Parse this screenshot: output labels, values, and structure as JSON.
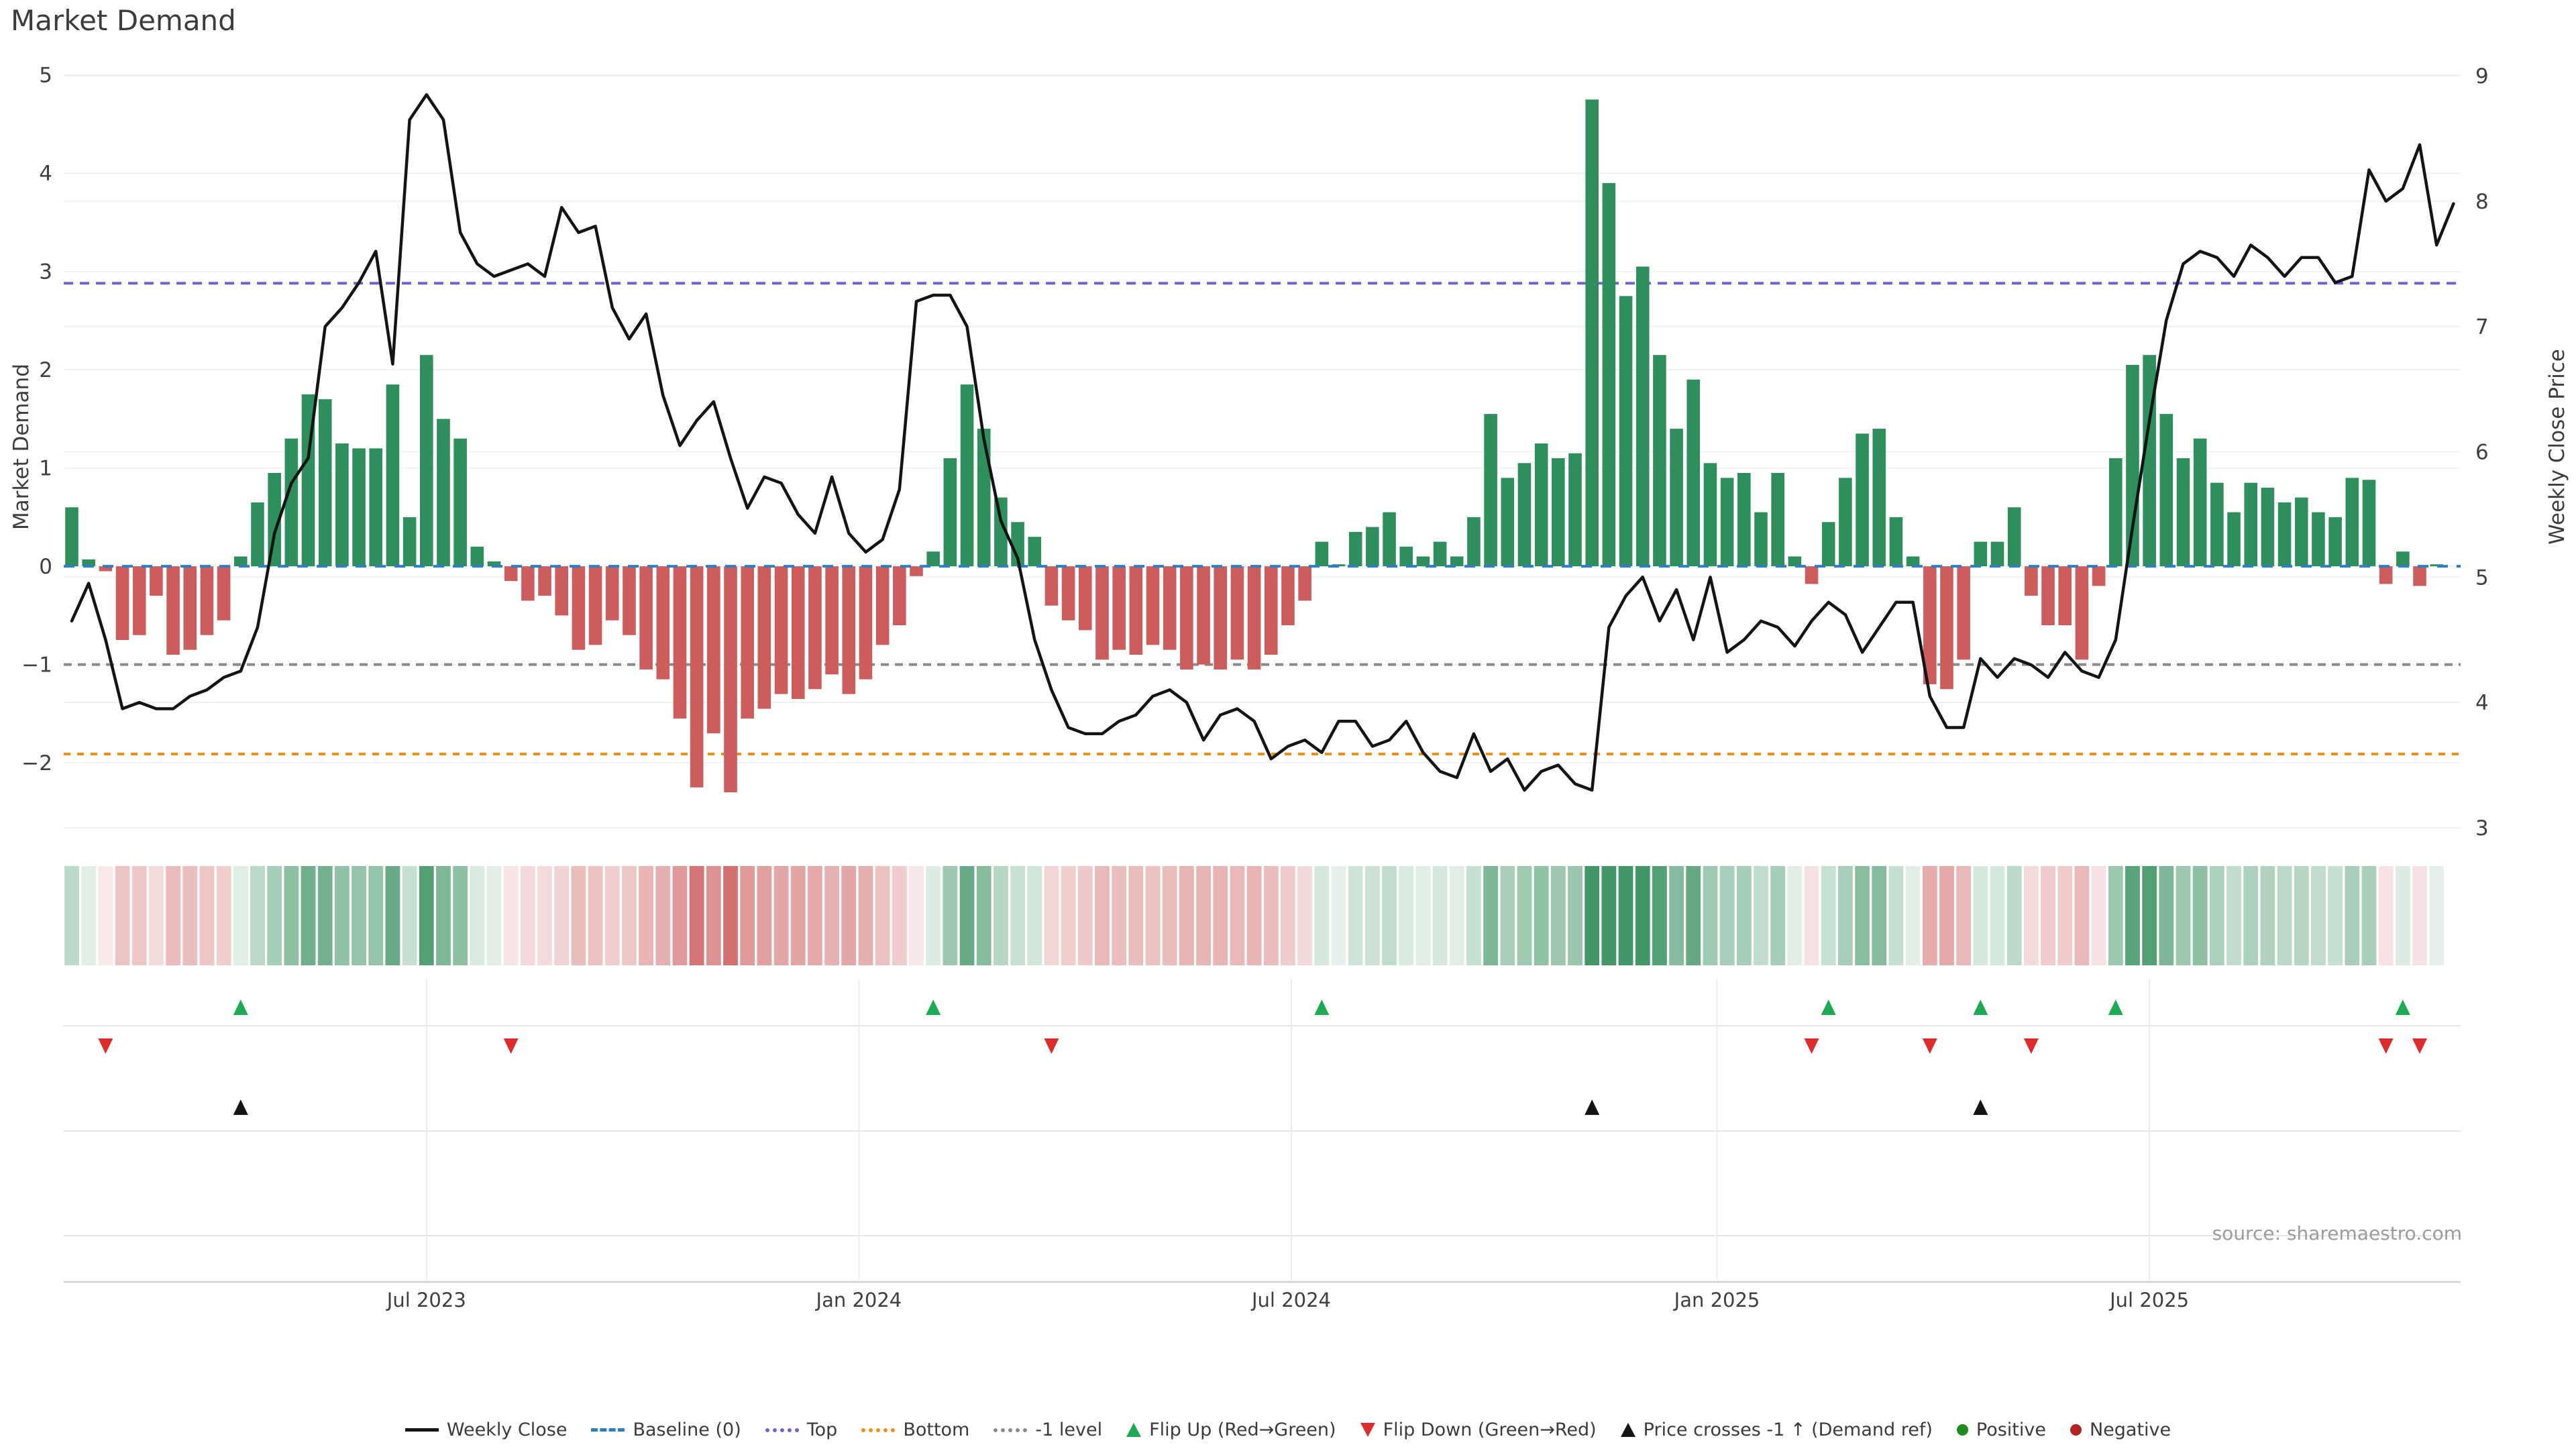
{
  "title": "Market Demand",
  "source": "source: sharemaestro.com",
  "left_axis": {
    "label": "Market Demand",
    "ticks": [
      {
        "v": 5,
        "label": "5"
      },
      {
        "v": 4,
        "label": "4"
      },
      {
        "v": 3,
        "label": "3"
      },
      {
        "v": 2,
        "label": "2"
      },
      {
        "v": 1,
        "label": "1"
      },
      {
        "v": 0,
        "label": "0"
      },
      {
        "v": -1,
        "label": "−1"
      },
      {
        "v": -2,
        "label": "−2"
      }
    ]
  },
  "right_axis": {
    "label": "Weekly Close Price",
    "ticks": [
      {
        "v": 9,
        "label": "9"
      },
      {
        "v": 8,
        "label": "8"
      },
      {
        "v": 7,
        "label": "7"
      },
      {
        "v": 6,
        "label": "6"
      },
      {
        "v": 5,
        "label": "5"
      },
      {
        "v": 4,
        "label": "4"
      },
      {
        "v": 3,
        "label": "3"
      }
    ]
  },
  "legend": {
    "items": [
      {
        "type": "line",
        "color": "#141414",
        "label": "Weekly Close"
      },
      {
        "type": "dashed",
        "color": "#2e7fc0",
        "label": "Baseline (0)"
      },
      {
        "type": "dotted",
        "color": "#6f63cf",
        "label": "Top"
      },
      {
        "type": "dotted",
        "color": "#ef8e1b",
        "label": "Bottom"
      },
      {
        "type": "dotted",
        "color": "#8a8a8a",
        "label": "-1 level"
      },
      {
        "type": "triangle-up",
        "color": "#1daa52",
        "label": "Flip Up (Red→Green)"
      },
      {
        "type": "triangle-down",
        "color": "#dd2c2c",
        "label": "Flip Down (Green→Red)"
      },
      {
        "type": "triangle-up",
        "color": "#141414",
        "label": "Price crosses -1 ↑ (Demand ref)"
      },
      {
        "type": "dot",
        "color": "#1e8c1e",
        "label": "Positive"
      },
      {
        "type": "dot",
        "color": "#b42222",
        "label": "Negative"
      }
    ]
  },
  "chart_data": {
    "type": "bar+line",
    "title": "Market Demand",
    "ylabel_left": "Market Demand",
    "ylabel_right": "Weekly Close Price",
    "weeks": 142,
    "demand_ylim": [
      -2.75,
      5.08
    ],
    "price_ylim": [
      2.93,
      9.07
    ],
    "x_ticks": [
      {
        "week": 21.0,
        "label": "Jul 2023"
      },
      {
        "week": 46.6,
        "label": "Jan 2024"
      },
      {
        "week": 72.2,
        "label": "Jul 2024"
      },
      {
        "week": 97.4,
        "label": "Jan 2025"
      },
      {
        "week": 123.0,
        "label": "Jul 2025"
      }
    ],
    "reference_lines": {
      "baseline": 0,
      "top": 2.88,
      "bottom": -1.91,
      "minus_one": -1
    },
    "colors": {
      "bar_positive": "#2e8f5c",
      "bar_negative": "#cd5c5c",
      "price_line": "#141414",
      "baseline": "#2e7fc0",
      "top_line": "#6f63cf",
      "bottom_line": "#ef8e1b",
      "minus_one_line": "#8a8a8a",
      "grid": "#eef2f7",
      "flip_up": "#1daa52",
      "flip_down": "#dd2c2c",
      "price_cross": "#141414"
    },
    "series": [
      {
        "name": "Market Demand",
        "type": "bar",
        "axis": "left",
        "values": [
          0.6,
          0.07,
          -0.05,
          -0.75,
          -0.7,
          -0.3,
          -0.9,
          -0.85,
          -0.7,
          -0.55,
          0.1,
          0.65,
          0.95,
          1.3,
          1.75,
          1.7,
          1.25,
          1.2,
          1.2,
          1.85,
          0.5,
          2.15,
          1.5,
          1.3,
          0.2,
          0.05,
          -0.15,
          -0.35,
          -0.3,
          -0.5,
          -0.85,
          -0.8,
          -0.55,
          -0.7,
          -1.05,
          -1.15,
          -1.55,
          -2.25,
          -1.7,
          -2.3,
          -1.55,
          -1.45,
          -1.3,
          -1.35,
          -1.25,
          -1.1,
          -1.3,
          -1.15,
          -0.8,
          -0.6,
          -0.1,
          0.15,
          1.1,
          1.85,
          1.4,
          0.7,
          0.45,
          0.3,
          -0.4,
          -0.55,
          -0.65,
          -0.95,
          -0.85,
          -0.9,
          -0.8,
          -0.85,
          -1.05,
          -1.0,
          -1.05,
          -0.95,
          -1.05,
          -0.9,
          -0.6,
          -0.35,
          0.25,
          0.02,
          0.35,
          0.4,
          0.55,
          0.2,
          0.1,
          0.25,
          0.1,
          0.5,
          1.55,
          0.9,
          1.05,
          1.25,
          1.1,
          1.15,
          4.75,
          3.9,
          2.75,
          3.05,
          2.15,
          1.4,
          1.9,
          1.05,
          0.9,
          0.95,
          0.55,
          0.95,
          0.1,
          -0.18,
          0.45,
          0.9,
          1.35,
          1.4,
          0.5,
          0.1,
          -1.2,
          -1.25,
          -0.95,
          0.25,
          0.25,
          0.6,
          -0.3,
          -0.6,
          -0.6,
          -0.95,
          -0.2,
          1.1,
          2.05,
          2.15,
          1.55,
          1.1,
          1.3,
          0.85,
          0.55,
          0.85,
          0.8,
          0.65,
          0.7,
          0.55,
          0.5,
          0.9,
          0.88,
          -0.18,
          0.15,
          -0.2,
          0.02,
          null
        ]
      },
      {
        "name": "Weekly Close",
        "type": "line",
        "axis": "right",
        "values": [
          4.65,
          4.95,
          4.5,
          3.95,
          4.0,
          3.95,
          3.95,
          4.05,
          4.1,
          4.2,
          4.25,
          4.6,
          5.35,
          5.75,
          5.95,
          7.0,
          7.15,
          7.35,
          7.6,
          6.7,
          8.65,
          8.85,
          8.65,
          7.75,
          7.5,
          7.4,
          7.45,
          7.5,
          7.4,
          7.95,
          7.75,
          7.8,
          7.15,
          6.9,
          7.1,
          6.45,
          6.05,
          6.25,
          6.4,
          5.95,
          5.55,
          5.8,
          5.75,
          5.5,
          5.35,
          5.8,
          5.35,
          5.2,
          5.3,
          5.7,
          7.2,
          7.25,
          7.25,
          7.0,
          6.1,
          5.45,
          5.15,
          4.5,
          4.1,
          3.8,
          3.75,
          3.75,
          3.85,
          3.9,
          4.05,
          4.1,
          4.0,
          3.7,
          3.9,
          3.95,
          3.85,
          3.55,
          3.65,
          3.7,
          3.6,
          3.85,
          3.85,
          3.65,
          3.7,
          3.85,
          3.6,
          3.45,
          3.4,
          3.75,
          3.45,
          3.55,
          3.3,
          3.45,
          3.5,
          3.35,
          3.3,
          4.6,
          4.85,
          5.0,
          4.65,
          4.9,
          4.5,
          5.0,
          4.4,
          4.5,
          4.65,
          4.6,
          4.45,
          4.65,
          4.8,
          4.7,
          4.4,
          4.6,
          4.8,
          4.8,
          4.05,
          3.8,
          3.8,
          4.35,
          4.2,
          4.35,
          4.3,
          4.2,
          4.4,
          4.25,
          4.2,
          4.5,
          5.4,
          6.25,
          7.05,
          7.5,
          7.6,
          7.55,
          7.4,
          7.65,
          7.55,
          7.4,
          7.55,
          7.55,
          7.35,
          7.4,
          8.25,
          8.0,
          8.1,
          8.45,
          7.65,
          7.98
        ]
      }
    ],
    "markers": {
      "flip_up_weeks": [
        10,
        51,
        74,
        104,
        113,
        121,
        138
      ],
      "flip_down_weeks": [
        2,
        26,
        58,
        103,
        110,
        116,
        137,
        139
      ],
      "price_cross_weeks": [
        10,
        90,
        113
      ]
    },
    "heatmap": {
      "description": "weekly demand sign/intensity strip",
      "positive_rgb": [
        46,
        139,
        87
      ],
      "negative_rgb": [
        205,
        92,
        92
      ]
    }
  }
}
